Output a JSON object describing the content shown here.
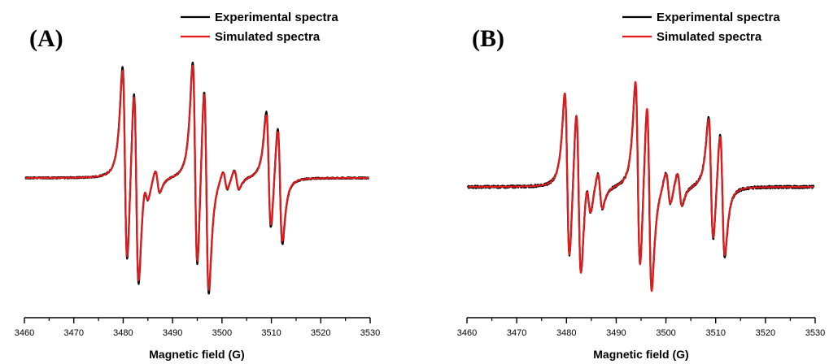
{
  "chart_data": [
    {
      "type": "line",
      "panel_label": "(A)",
      "xlabel": "Magnetic field (G)",
      "ylabel": "",
      "xlim": [
        3460,
        3530
      ],
      "x_ticks": [
        "3460",
        "3470",
        "3480",
        "3490",
        "3500",
        "3510",
        "3520",
        "3530"
      ],
      "grid": false,
      "legend_position": "top-right",
      "series": [
        {
          "name": "Experimental spectra",
          "color": "#000000",
          "lines": [
            {
              "center": 3481.5,
              "amp": 1.0
            },
            {
              "center": 3485.8,
              "amp": 0.12
            },
            {
              "center": 3495.7,
              "amp": 1.05
            },
            {
              "center": 3501.8,
              "amp": 0.1
            },
            {
              "center": 3510.6,
              "amp": 0.6
            }
          ],
          "pair_offset": 2.3,
          "width": 0.85,
          "noise": 0.006
        },
        {
          "name": "Simulated spectra",
          "color": "#e31a1c",
          "lines": [
            {
              "center": 3481.5,
              "amp": 0.97
            },
            {
              "center": 3485.8,
              "amp": 0.12
            },
            {
              "center": 3495.7,
              "amp": 1.02
            },
            {
              "center": 3501.8,
              "amp": 0.1
            },
            {
              "center": 3510.6,
              "amp": 0.57
            }
          ],
          "pair_offset": 2.3,
          "width": 0.85,
          "noise": 0
        }
      ]
    },
    {
      "type": "line",
      "panel_label": "(B)",
      "xlabel": "Magnetic field (G)",
      "ylabel": "",
      "xlim": [
        3460,
        3530
      ],
      "x_ticks": [
        "3460",
        "3470",
        "3480",
        "3490",
        "3500",
        "3510",
        "3520",
        "3530"
      ],
      "grid": false,
      "legend_position": "top-right",
      "series": [
        {
          "name": "Experimental spectra",
          "color": "#000000",
          "lines": [
            {
              "center": 3481.3,
              "amp": 0.9
            },
            {
              "center": 3485.6,
              "amp": 0.2
            },
            {
              "center": 3495.5,
              "amp": 1.0
            },
            {
              "center": 3501.6,
              "amp": 0.18
            },
            {
              "center": 3510.2,
              "amp": 0.68
            }
          ],
          "pair_offset": 2.3,
          "width": 0.85,
          "noise": 0.012
        },
        {
          "name": "Simulated spectra",
          "color": "#e31a1c",
          "lines": [
            {
              "center": 3481.3,
              "amp": 0.9
            },
            {
              "center": 3485.6,
              "amp": 0.2
            },
            {
              "center": 3495.5,
              "amp": 1.02
            },
            {
              "center": 3501.6,
              "amp": 0.18
            },
            {
              "center": 3510.2,
              "amp": 0.66
            }
          ],
          "pair_offset": 2.3,
          "width": 0.85,
          "noise": 0
        }
      ]
    }
  ]
}
